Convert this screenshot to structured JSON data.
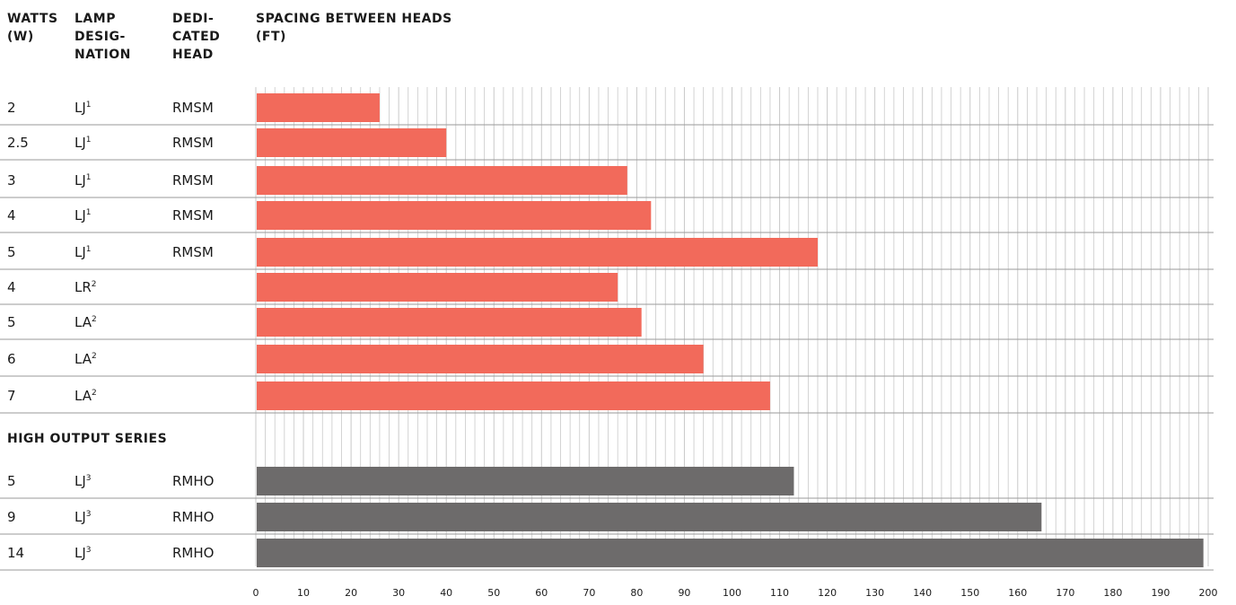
{
  "headers": {
    "watts": [
      "WATTS",
      "(W)"
    ],
    "lamp": [
      "LAMP",
      "DESIG-",
      "NATION"
    ],
    "head": [
      "DEDI-",
      "CATED",
      "HEAD"
    ],
    "spacing": [
      "SPACING BETWEEN HEADS",
      "(FT)"
    ]
  },
  "section_label": "HIGH OUTPUT SERIES",
  "colors": {
    "standard": "#f26a5b",
    "high_output": "#6d6b6b",
    "grid": "#c9c9c9",
    "rule": "#9a9a9a"
  },
  "chart_data": {
    "type": "bar",
    "orientation": "horizontal",
    "x_ticks": [
      0,
      10,
      20,
      30,
      40,
      50,
      60,
      70,
      80,
      90,
      100,
      110,
      120,
      130,
      140,
      150,
      160,
      170,
      180,
      190,
      200
    ],
    "xlim": [
      0,
      200
    ],
    "grid": true,
    "groups": [
      {
        "label": "",
        "rows": [
          {
            "watts": "2",
            "lamp": "LJ",
            "sup": "1",
            "head": "RMSM",
            "value": 26
          },
          {
            "watts": "2.5",
            "lamp": "LJ",
            "sup": "1",
            "head": "RMSM",
            "value": 40
          },
          {
            "watts": "3",
            "lamp": "LJ",
            "sup": "1",
            "head": "RMSM",
            "value": 78
          },
          {
            "watts": "4",
            "lamp": "LJ",
            "sup": "1",
            "head": "RMSM",
            "value": 83
          },
          {
            "watts": "5",
            "lamp": "LJ",
            "sup": "1",
            "head": "RMSM",
            "value": 118
          },
          {
            "watts": "4",
            "lamp": "LR",
            "sup": "2",
            "head": "",
            "value": 76
          },
          {
            "watts": "5",
            "lamp": "LA",
            "sup": "2",
            "head": "",
            "value": 81
          },
          {
            "watts": "6",
            "lamp": "LA",
            "sup": "2",
            "head": "",
            "value": 94
          },
          {
            "watts": "7",
            "lamp": "LA",
            "sup": "2",
            "head": "",
            "value": 108
          }
        ]
      },
      {
        "label": "HIGH OUTPUT SERIES",
        "rows": [
          {
            "watts": "5",
            "lamp": "LJ",
            "sup": "3",
            "head": "RMHO",
            "value": 113
          },
          {
            "watts": "9",
            "lamp": "LJ",
            "sup": "3",
            "head": "RMHO",
            "value": 165
          },
          {
            "watts": "14",
            "lamp": "LJ",
            "sup": "3",
            "head": "RMHO",
            "value": 199
          }
        ]
      }
    ]
  }
}
